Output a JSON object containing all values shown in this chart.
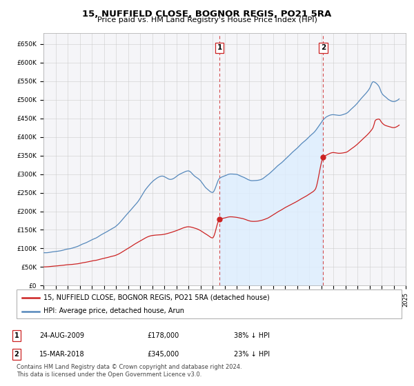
{
  "title": "15, NUFFIELD CLOSE, BOGNOR REGIS, PO21 5RA",
  "subtitle": "Price paid vs. HM Land Registry's House Price Index (HPI)",
  "title_fontsize": 10,
  "subtitle_fontsize": 8.5,
  "ylim": [
    0,
    680000
  ],
  "yticks": [
    0,
    50000,
    100000,
    150000,
    200000,
    250000,
    300000,
    350000,
    400000,
    450000,
    500000,
    550000,
    600000,
    650000
  ],
  "ytick_labels": [
    "£0",
    "£50K",
    "£100K",
    "£150K",
    "£200K",
    "£250K",
    "£300K",
    "£350K",
    "£400K",
    "£450K",
    "£500K",
    "£550K",
    "£600K",
    "£650K"
  ],
  "hpi_color": "#5588bb",
  "hpi_fill_color": "#ddeeff",
  "price_color": "#cc2222",
  "marker_color": "#cc2222",
  "background_color": "#ffffff",
  "plot_bg_color": "#f5f5f8",
  "grid_color": "#cccccc",
  "ann1_x": 2009.58,
  "ann1_y": 178000,
  "ann2_x": 2018.17,
  "ann2_y": 345000,
  "xlim_left": 1995.0,
  "xlim_right": 2025.0,
  "legend_entries": [
    "15, NUFFIELD CLOSE, BOGNOR REGIS, PO21 5RA (detached house)",
    "HPI: Average price, detached house, Arun"
  ],
  "table_rows": [
    [
      "1",
      "24-AUG-2009",
      "£178,000",
      "38% ↓ HPI"
    ],
    [
      "2",
      "15-MAR-2018",
      "£345,000",
      "23% ↓ HPI"
    ]
  ],
  "footer": "Contains HM Land Registry data © Crown copyright and database right 2024.\nThis data is licensed under the Open Government Licence v3.0."
}
